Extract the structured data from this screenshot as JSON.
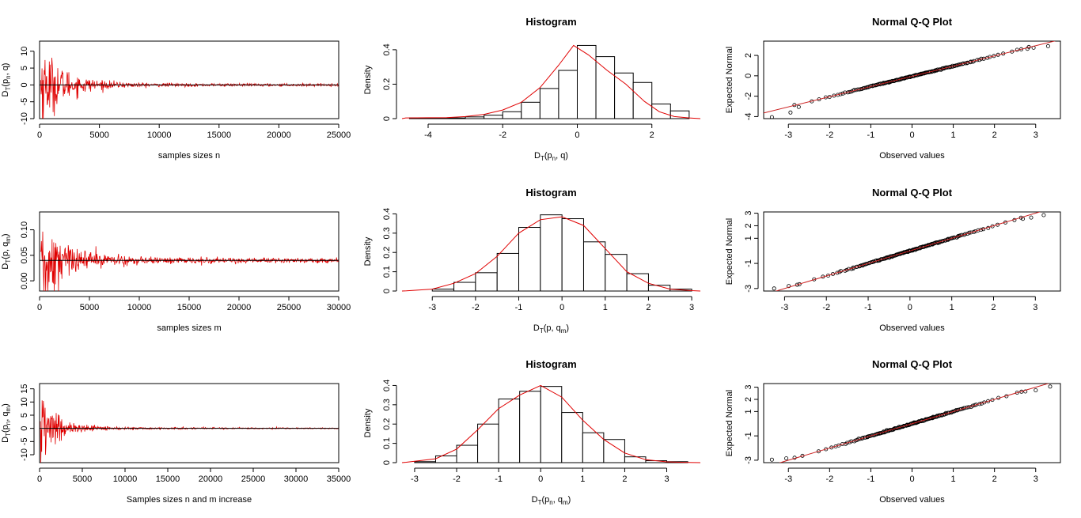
{
  "colors": {
    "series": "#e00000",
    "axis": "#000000",
    "fit": "#cc2222"
  },
  "chart_data": [
    {
      "type": "line",
      "row": 0,
      "title": "",
      "xlabel": "samples sizes n",
      "ylabel": {
        "main": "D",
        "sub": "T",
        "args": [
          {
            "t": "(p"
          },
          {
            "t": "n",
            "sub": true
          },
          {
            "t": ", q)"
          }
        ]
      },
      "n_max": 25000,
      "xlim": [
        0,
        25000
      ],
      "ylim": [
        -10,
        13
      ],
      "xticks": [
        0,
        5000,
        10000,
        15000,
        20000,
        25000
      ],
      "yticks": [
        -10,
        -5,
        0,
        5,
        10
      ],
      "reference_line": 0,
      "initial_amplitude": 12,
      "decay_scale": 1800,
      "floor_amplitude": 0.7
    },
    {
      "type": "bar",
      "subtype": "histogram",
      "row": 0,
      "title": "Histogram",
      "xlabel": {
        "main": "D",
        "sub": "T",
        "args": [
          {
            "t": "(p"
          },
          {
            "t": "n",
            "sub": true
          },
          {
            "t": ", q)"
          }
        ]
      },
      "ylabel": "Density",
      "xlim": [
        -4.7,
        3.3
      ],
      "ylim": [
        0,
        0.45
      ],
      "xticks": [
        -4,
        -2,
        0,
        2
      ],
      "yticks": [
        0.0,
        0.2,
        0.4
      ],
      "bin_edges": [
        -4.5,
        -4.0,
        -3.5,
        -3.0,
        -2.5,
        -2.0,
        -1.5,
        -1.0,
        -0.5,
        0.0,
        0.5,
        1.0,
        1.5,
        2.0,
        2.5,
        3.0
      ],
      "densities": [
        0.004,
        0.004,
        0.004,
        0.01,
        0.02,
        0.04,
        0.095,
        0.175,
        0.28,
        0.425,
        0.36,
        0.265,
        0.21,
        0.085,
        0.045
      ],
      "density_curve": {
        "x": [
          -4.6,
          -4.0,
          -3.5,
          -3.0,
          -2.5,
          -2.0,
          -1.5,
          -1.0,
          -0.5,
          -0.1,
          0.3,
          0.8,
          1.3,
          1.8,
          2.2,
          2.6,
          3.0
        ],
        "y": [
          0.004,
          0.005,
          0.006,
          0.012,
          0.025,
          0.05,
          0.095,
          0.18,
          0.31,
          0.425,
          0.37,
          0.28,
          0.2,
          0.1,
          0.04,
          0.012,
          0.004
        ]
      }
    },
    {
      "type": "scatter",
      "subtype": "qq",
      "row": 0,
      "title": "Normal Q-Q Plot",
      "xlabel": "Observed values",
      "ylabel": "Expected Normal",
      "xlim": [
        -3.6,
        3.6
      ],
      "ylim": [
        -4.2,
        3.4
      ],
      "xticks": [
        -3,
        -2,
        -1,
        0,
        1,
        2,
        3
      ],
      "yticks": [
        -4,
        -2,
        0,
        2
      ],
      "qq_line": {
        "slope": 1.0,
        "intercept": -0.05
      },
      "n_points": 160,
      "scale": 1.04,
      "tail_points": [
        [
          -3.4,
          -4.05
        ],
        [
          -2.95,
          -3.6
        ],
        [
          -2.75,
          -3.05
        ],
        [
          2.55,
          2.55
        ],
        [
          2.65,
          2.6
        ],
        [
          2.8,
          2.65
        ],
        [
          2.95,
          2.75
        ],
        [
          3.3,
          2.9
        ]
      ]
    },
    {
      "type": "line",
      "row": 1,
      "title": "",
      "xlabel": "samples sizes m",
      "ylabel": {
        "main": "D",
        "sub": "T",
        "args": [
          {
            "t": "(p, q"
          },
          {
            "t": "m",
            "sub": true
          },
          {
            "t": ")"
          }
        ]
      },
      "n_max": 30000,
      "xlim": [
        0,
        30000
      ],
      "ylim": [
        -0.02,
        0.135
      ],
      "xticks": [
        0,
        5000,
        10000,
        15000,
        20000,
        25000,
        30000
      ],
      "yticks": [
        0.0,
        0.05,
        0.1
      ],
      "ytick_labels": [
        "0.00",
        "0.05",
        "0.10"
      ],
      "reference_line": 0.04,
      "initial_amplitude": 0.09,
      "decay_scale": 2200,
      "floor_amplitude": 0.009
    },
    {
      "type": "bar",
      "subtype": "histogram",
      "row": 1,
      "title": "Histogram",
      "xlabel": {
        "main": "D",
        "sub": "T",
        "args": [
          {
            "t": "(p, q"
          },
          {
            "t": "m",
            "sub": true
          },
          {
            "t": ")"
          }
        ]
      },
      "ylabel": "Density",
      "xlim": [
        -3.7,
        3.2
      ],
      "ylim": [
        0,
        0.41
      ],
      "xticks": [
        -3,
        -2,
        -1,
        0,
        1,
        2,
        3
      ],
      "yticks": [
        0.0,
        0.1,
        0.2,
        0.3,
        0.4
      ],
      "bin_edges": [
        -3.0,
        -2.5,
        -2.0,
        -1.5,
        -1.0,
        -0.5,
        0.0,
        0.5,
        1.0,
        1.5,
        2.0,
        2.5,
        3.0
      ],
      "densities": [
        0.01,
        0.045,
        0.095,
        0.195,
        0.33,
        0.395,
        0.375,
        0.255,
        0.19,
        0.09,
        0.03,
        0.01
      ],
      "density_curve": {
        "x": [
          -3.6,
          -3.0,
          -2.5,
          -2.0,
          -1.5,
          -1.0,
          -0.5,
          0.0,
          0.5,
          1.0,
          1.5,
          2.0,
          2.5,
          3.0
        ],
        "y": [
          0.001,
          0.01,
          0.04,
          0.09,
          0.18,
          0.3,
          0.37,
          0.385,
          0.34,
          0.22,
          0.1,
          0.04,
          0.01,
          0.002
        ]
      }
    },
    {
      "type": "scatter",
      "subtype": "qq",
      "row": 1,
      "title": "Normal Q-Q Plot",
      "xlabel": "Observed values",
      "ylabel": "Expected Normal",
      "xlim": [
        -3.5,
        3.6
      ],
      "ylim": [
        -3.2,
        3.1
      ],
      "xticks": [
        -3,
        -2,
        -1,
        0,
        1,
        2,
        3
      ],
      "yticks": [
        -3,
        -1,
        1,
        2,
        3
      ],
      "qq_line": {
        "slope": 1.0,
        "intercept": 0.0
      },
      "n_points": 160,
      "scale": 0.97,
      "tail_points": [
        [
          -3.25,
          -3.0
        ],
        [
          -2.9,
          -2.8
        ],
        [
          -2.7,
          -2.7
        ],
        [
          2.5,
          2.45
        ],
        [
          2.7,
          2.55
        ],
        [
          2.9,
          2.65
        ],
        [
          3.2,
          2.85
        ]
      ]
    },
    {
      "type": "line",
      "row": 2,
      "title": "",
      "xlabel": "Samples sizes n and m increase",
      "ylabel": {
        "main": "D",
        "sub": "T",
        "args": [
          {
            "t": "(p"
          },
          {
            "t": "n",
            "sub": true
          },
          {
            "t": ", q"
          },
          {
            "t": "m",
            "sub": true
          },
          {
            "t": ")"
          }
        ]
      },
      "n_max": 35000,
      "xlim": [
        0,
        35000
      ],
      "ylim": [
        -13,
        17
      ],
      "xticks": [
        0,
        5000,
        10000,
        15000,
        20000,
        25000,
        30000,
        35000
      ],
      "yticks": [
        -10,
        -5,
        0,
        5,
        10,
        15
      ],
      "reference_line": 0,
      "initial_amplitude": 14,
      "decay_scale": 1800,
      "floor_amplitude": 0.6
    },
    {
      "type": "bar",
      "subtype": "histogram",
      "row": 2,
      "title": "Histogram",
      "xlabel": {
        "main": "D",
        "sub": "T",
        "args": [
          {
            "t": "(p"
          },
          {
            "t": "n",
            "sub": true
          },
          {
            "t": ", q"
          },
          {
            "t": "m",
            "sub": true
          },
          {
            "t": ")"
          }
        ]
      },
      "ylabel": "Density",
      "xlim": [
        -3.3,
        3.8
      ],
      "ylim": [
        0,
        0.41
      ],
      "xticks": [
        -3,
        -2,
        -1,
        0,
        1,
        2,
        3
      ],
      "yticks": [
        0.0,
        0.1,
        0.2,
        0.3,
        0.4
      ],
      "bin_edges": [
        -3.0,
        -2.5,
        -2.0,
        -1.5,
        -1.0,
        -0.5,
        0.0,
        0.5,
        1.0,
        1.5,
        2.0,
        2.5,
        3.0,
        3.5
      ],
      "densities": [
        0.005,
        0.035,
        0.09,
        0.2,
        0.33,
        0.37,
        0.395,
        0.26,
        0.155,
        0.12,
        0.03,
        0.01,
        0.005
      ],
      "density_curve": {
        "x": [
          -3.2,
          -2.5,
          -2.0,
          -1.5,
          -1.0,
          -0.5,
          0.0,
          0.5,
          1.0,
          1.5,
          2.0,
          2.5,
          3.0,
          3.5
        ],
        "y": [
          0.002,
          0.02,
          0.07,
          0.17,
          0.28,
          0.35,
          0.4,
          0.34,
          0.22,
          0.12,
          0.05,
          0.015,
          0.004,
          0.001
        ]
      }
    },
    {
      "type": "scatter",
      "subtype": "qq",
      "row": 2,
      "title": "Normal Q-Q Plot",
      "xlabel": "Observed values",
      "ylabel": "Expected Normal",
      "xlim": [
        -3.6,
        3.6
      ],
      "ylim": [
        -3.2,
        3.3
      ],
      "xticks": [
        -3,
        -2,
        -1,
        0,
        1,
        2,
        3
      ],
      "yticks": [
        -3,
        -1,
        1,
        2,
        3
      ],
      "qq_line": {
        "slope": 1.0,
        "intercept": 0.0
      },
      "n_points": 160,
      "scale": 0.97,
      "tail_points": [
        [
          -3.4,
          -2.95
        ],
        [
          -3.05,
          -2.85
        ],
        [
          -2.85,
          -2.8
        ],
        [
          2.55,
          2.55
        ],
        [
          2.75,
          2.65
        ],
        [
          3.0,
          2.75
        ],
        [
          3.35,
          3.05
        ]
      ]
    }
  ]
}
